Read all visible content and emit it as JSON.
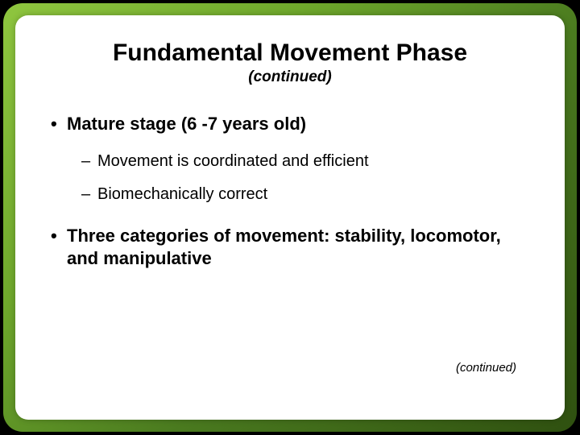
{
  "slide": {
    "title": "Fundamental Movement Phase",
    "subtitle": "(continued)",
    "bullets": {
      "b1": "Mature stage (6 -7 years old)",
      "b1_sub1": "Movement is coordinated and efficient",
      "b1_sub2": "Biomechanically correct",
      "b2": "Three categories of movement: stability, locomotor, and manipulative"
    },
    "footer": "(continued)"
  },
  "style": {
    "background_color": "#000000",
    "frame_gradient": [
      "#8fc63f",
      "#6fa82c",
      "#4a7a1f",
      "#2f5010"
    ],
    "card_background": "#ffffff",
    "text_color": "#000000",
    "title_fontsize": 30,
    "subtitle_fontsize": 19,
    "bullet1_fontsize": 22,
    "bullet2_fontsize": 20,
    "footer_fontsize": 15,
    "frame_radius": 24,
    "card_radius": 16
  }
}
